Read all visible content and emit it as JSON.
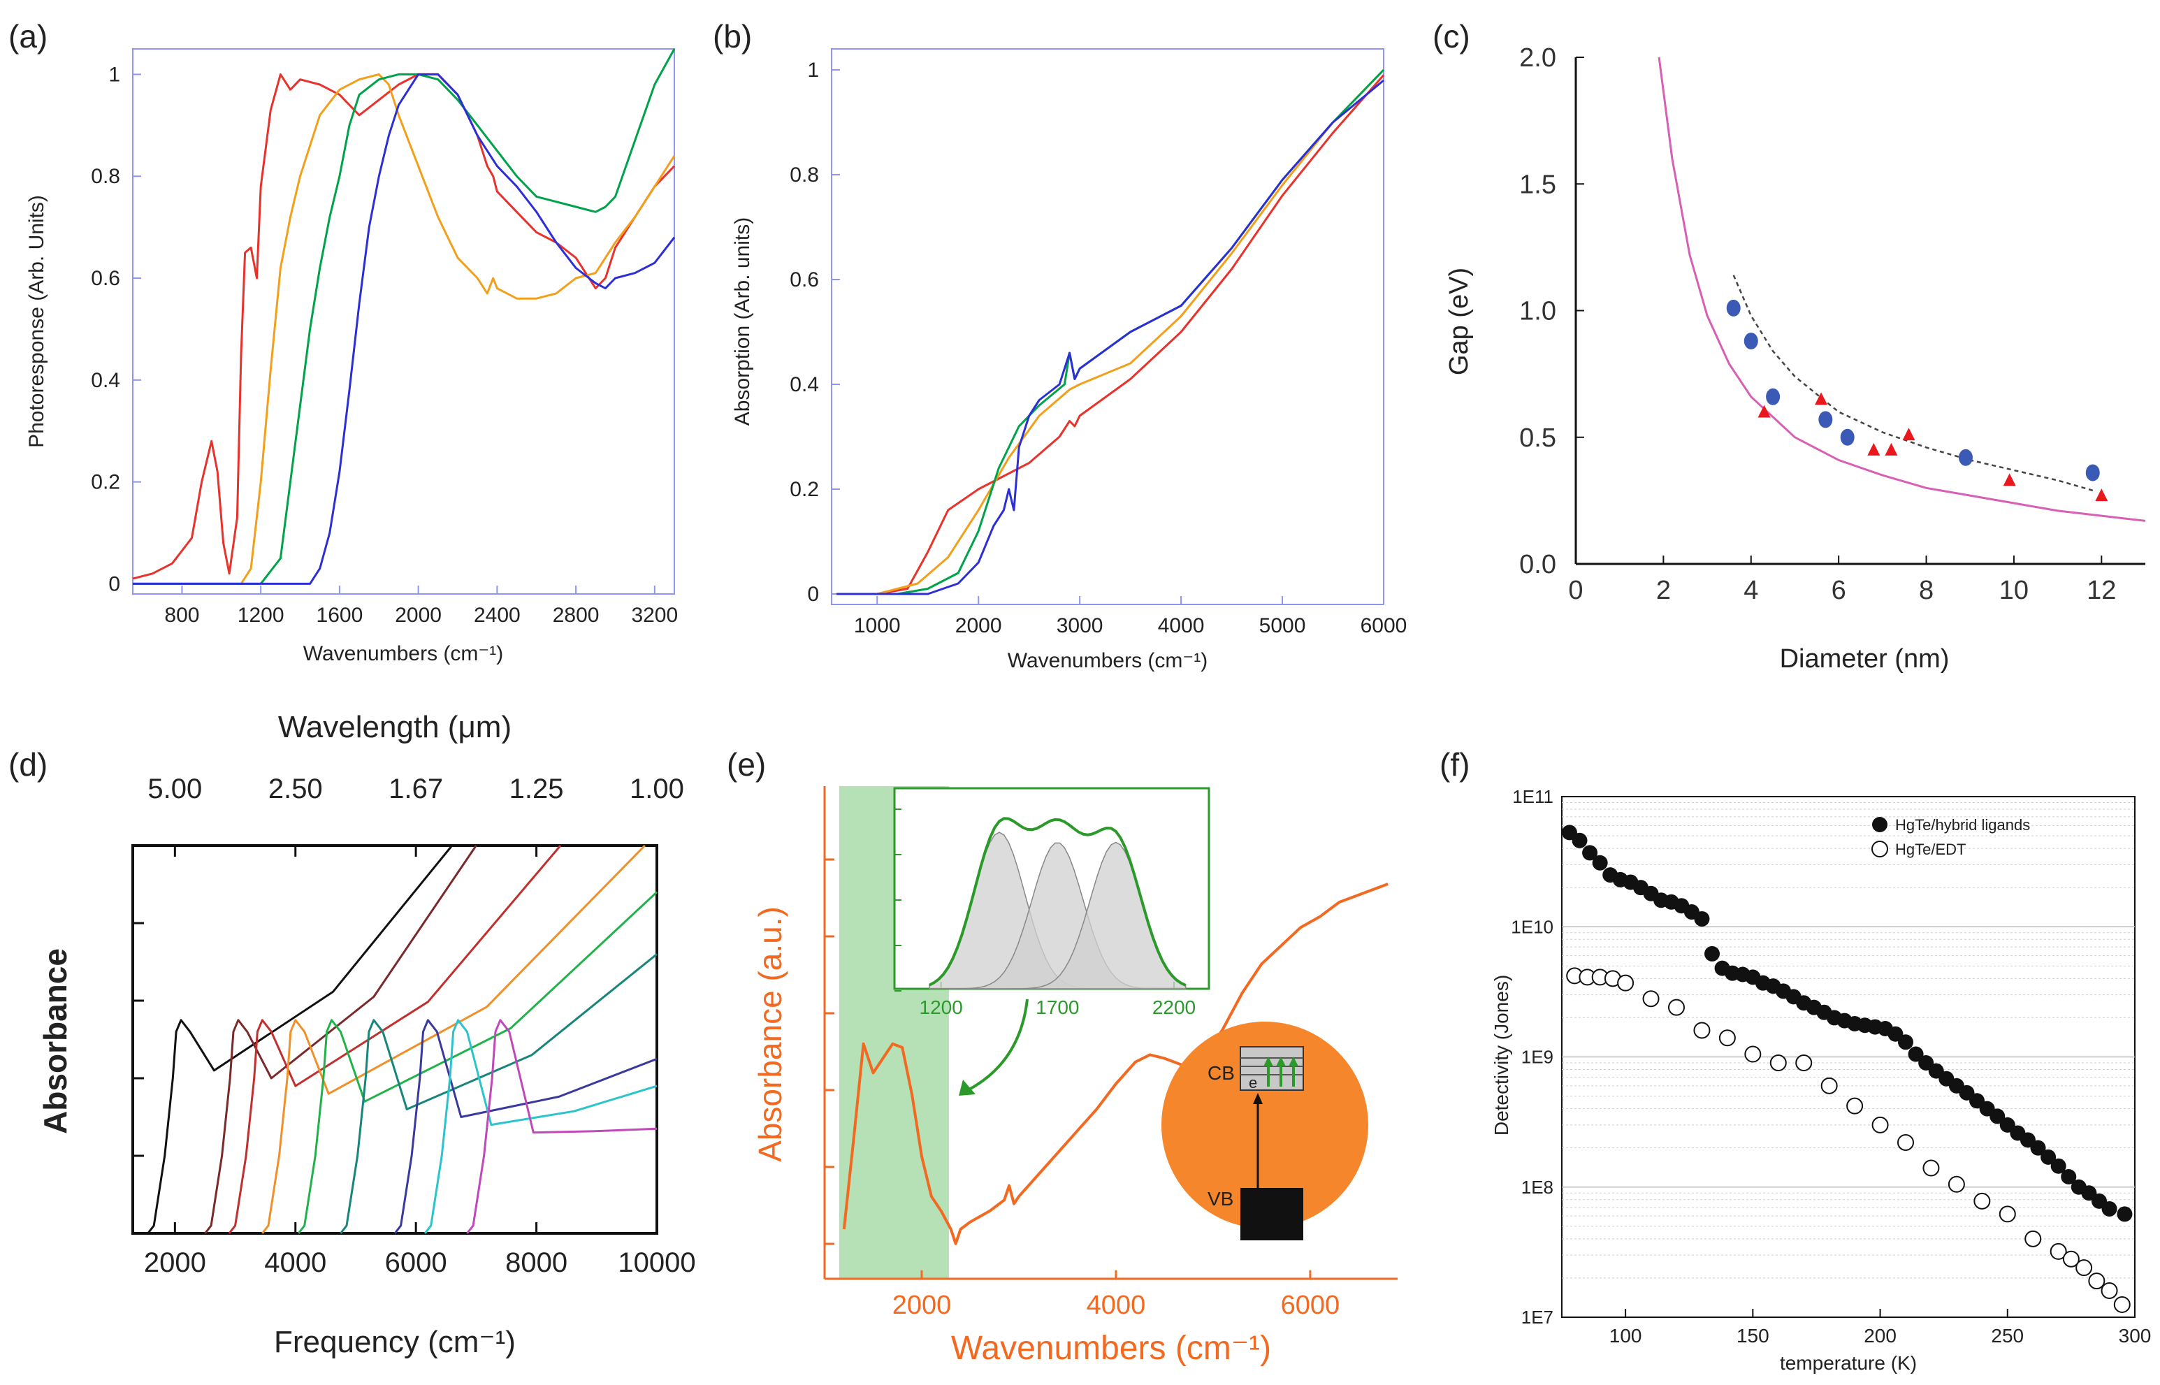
{
  "panels": {
    "a": {
      "tag": "(a)"
    },
    "b": {
      "tag": "(b)"
    },
    "c": {
      "tag": "(c)"
    },
    "d": {
      "tag": "(d)"
    },
    "e": {
      "tag": "(e)"
    },
    "f": {
      "tag": "(f)"
    }
  },
  "colors": {
    "red": "#e8322c",
    "orange": "#f2a01c",
    "green": "#00a24a",
    "blue": "#2d2fd6",
    "frame": "#8f95f0",
    "eorange": "#f26a21",
    "egreen": "#2b9a2b",
    "pink": "#d75fb5"
  },
  "chart_data": [
    {
      "id": "a",
      "type": "line",
      "xlabel": "Wavenumbers (cm⁻¹)",
      "ylabel": "Photoresponse (Arb. Units)",
      "xlim": [
        550,
        3300
      ],
      "ylim": [
        -0.02,
        1.05
      ],
      "xticks": [
        "800",
        "1200",
        "1600",
        "2000",
        "2400",
        "2800",
        "3200"
      ],
      "yticks": [
        "0",
        "0.2",
        "0.4",
        "0.6",
        "0.8",
        "1"
      ],
      "series": [
        {
          "name": "red",
          "color": "#e8322c",
          "x": [
            550,
            650,
            750,
            850,
            900,
            950,
            980,
            1010,
            1040,
            1080,
            1100,
            1120,
            1150,
            1180,
            1200,
            1250,
            1300,
            1350,
            1400,
            1500,
            1600,
            1700,
            1800,
            1900,
            2000,
            2100,
            2200,
            2300,
            2350,
            2380,
            2400,
            2500,
            2600,
            2700,
            2800,
            2900,
            2950,
            3000,
            3100,
            3200,
            3300
          ],
          "y": [
            0.01,
            0.02,
            0.04,
            0.09,
            0.2,
            0.28,
            0.22,
            0.08,
            0.02,
            0.13,
            0.45,
            0.65,
            0.66,
            0.6,
            0.78,
            0.93,
            1.0,
            0.97,
            0.99,
            0.98,
            0.96,
            0.92,
            0.95,
            0.98,
            1.0,
            1.0,
            0.96,
            0.88,
            0.82,
            0.8,
            0.77,
            0.73,
            0.69,
            0.67,
            0.64,
            0.58,
            0.6,
            0.66,
            0.72,
            0.78,
            0.82
          ]
        },
        {
          "name": "orange",
          "color": "#f2a01c",
          "x": [
            550,
            1100,
            1150,
            1200,
            1250,
            1300,
            1350,
            1400,
            1500,
            1600,
            1700,
            1800,
            1850,
            1900,
            2000,
            2100,
            2200,
            2300,
            2350,
            2380,
            2400,
            2500,
            2600,
            2700,
            2800,
            2900,
            3000,
            3100,
            3200,
            3300
          ],
          "y": [
            0.0,
            0.0,
            0.03,
            0.2,
            0.42,
            0.62,
            0.72,
            0.8,
            0.92,
            0.97,
            0.99,
            1.0,
            0.98,
            0.92,
            0.82,
            0.72,
            0.64,
            0.6,
            0.57,
            0.6,
            0.58,
            0.56,
            0.56,
            0.57,
            0.6,
            0.61,
            0.67,
            0.72,
            0.78,
            0.84
          ]
        },
        {
          "name": "green",
          "color": "#00a24a",
          "x": [
            550,
            1200,
            1300,
            1350,
            1400,
            1450,
            1500,
            1550,
            1600,
            1650,
            1700,
            1800,
            1900,
            2000,
            2100,
            2200,
            2300,
            2400,
            2500,
            2600,
            2700,
            2800,
            2900,
            2950,
            3000,
            3100,
            3200,
            3300
          ],
          "y": [
            0.0,
            0.0,
            0.05,
            0.2,
            0.35,
            0.5,
            0.62,
            0.72,
            0.8,
            0.9,
            0.96,
            0.99,
            1.0,
            1.0,
            0.99,
            0.95,
            0.9,
            0.85,
            0.8,
            0.76,
            0.75,
            0.74,
            0.73,
            0.74,
            0.76,
            0.87,
            0.98,
            1.05
          ]
        },
        {
          "name": "blue",
          "color": "#2d2fd6",
          "x": [
            550,
            1450,
            1500,
            1550,
            1600,
            1650,
            1700,
            1750,
            1800,
            1850,
            1900,
            2000,
            2100,
            2200,
            2300,
            2400,
            2500,
            2600,
            2700,
            2800,
            2900,
            2950,
            3000,
            3100,
            3200,
            3300
          ],
          "y": [
            0.0,
            0.0,
            0.03,
            0.1,
            0.22,
            0.38,
            0.55,
            0.7,
            0.8,
            0.88,
            0.94,
            1.0,
            1.0,
            0.96,
            0.88,
            0.82,
            0.78,
            0.73,
            0.67,
            0.62,
            0.59,
            0.58,
            0.6,
            0.61,
            0.63,
            0.68
          ]
        }
      ]
    },
    {
      "id": "b",
      "type": "line",
      "xlabel": "Wavenumbers (cm⁻¹)",
      "ylabel": "Absorption (Arb. units)",
      "xlim": [
        550,
        6000
      ],
      "ylim": [
        -0.02,
        1.04
      ],
      "xticks": [
        "1000",
        "2000",
        "3000",
        "4000",
        "5000",
        "6000"
      ],
      "yticks": [
        "0",
        "0.2",
        "0.4",
        "0.6",
        "0.8",
        "1"
      ],
      "series": [
        {
          "name": "red",
          "color": "#e8322c",
          "x": [
            600,
            1000,
            1300,
            1500,
            1700,
            2000,
            2500,
            2800,
            2900,
            2950,
            3000,
            3500,
            4000,
            4500,
            5000,
            5500,
            6000
          ],
          "y": [
            0.0,
            0.0,
            0.01,
            0.08,
            0.16,
            0.2,
            0.25,
            0.3,
            0.33,
            0.32,
            0.34,
            0.41,
            0.5,
            0.62,
            0.76,
            0.88,
            0.99
          ]
        },
        {
          "name": "orange",
          "color": "#f2a01c",
          "x": [
            600,
            1000,
            1400,
            1700,
            2000,
            2300,
            2600,
            2900,
            3000,
            3500,
            4000,
            4500,
            5000,
            5500,
            6000
          ],
          "y": [
            0.0,
            0.0,
            0.02,
            0.07,
            0.16,
            0.26,
            0.34,
            0.39,
            0.4,
            0.44,
            0.53,
            0.65,
            0.78,
            0.9,
            1.0
          ]
        },
        {
          "name": "green",
          "color": "#00a24a",
          "x": [
            600,
            1200,
            1500,
            1800,
            2000,
            2200,
            2400,
            2600,
            2850,
            2900,
            2950,
            3000,
            3500,
            4000,
            4500,
            5000,
            5500,
            6000
          ],
          "y": [
            0.0,
            0.0,
            0.01,
            0.04,
            0.12,
            0.24,
            0.32,
            0.36,
            0.4,
            0.46,
            0.41,
            0.43,
            0.5,
            0.55,
            0.66,
            0.79,
            0.9,
            1.0
          ]
        },
        {
          "name": "blue",
          "color": "#2d2fd6",
          "x": [
            600,
            1500,
            1800,
            2000,
            2150,
            2250,
            2300,
            2350,
            2400,
            2500,
            2600,
            2800,
            2900,
            2950,
            3000,
            3500,
            4000,
            4500,
            5000,
            5500,
            6000
          ],
          "y": [
            0.0,
            0.0,
            0.02,
            0.06,
            0.13,
            0.16,
            0.2,
            0.16,
            0.28,
            0.34,
            0.37,
            0.4,
            0.46,
            0.41,
            0.43,
            0.5,
            0.55,
            0.66,
            0.79,
            0.9,
            0.98
          ]
        }
      ]
    },
    {
      "id": "c",
      "type": "scatter",
      "xlabel": "Diameter (nm)",
      "ylabel": "Gap (eV)",
      "xlim": [
        0,
        13
      ],
      "ylim": [
        0,
        2.0
      ],
      "xticks": [
        "0",
        "2",
        "4",
        "6",
        "8",
        "10",
        "12"
      ],
      "yticks": [
        "0.0",
        "0.5",
        "1.0",
        "1.5",
        "2.0"
      ],
      "circles": {
        "x": [
          3.6,
          4.0,
          4.5,
          5.7,
          6.2,
          8.9,
          11.8
        ],
        "y": [
          1.01,
          0.88,
          0.66,
          0.57,
          0.5,
          0.42,
          0.36
        ]
      },
      "triangles": {
        "x": [
          4.3,
          5.6,
          6.8,
          7.2,
          7.6,
          9.9,
          12.0
        ],
        "y": [
          0.6,
          0.65,
          0.45,
          0.45,
          0.51,
          0.33,
          0.27
        ]
      },
      "fit_solid": {
        "x": [
          1.9,
          2.2,
          2.6,
          3.0,
          3.5,
          4.0,
          5.0,
          6.0,
          7.0,
          8.0,
          9.0,
          10.0,
          11.0,
          12.0,
          13.0
        ],
        "y": [
          2.0,
          1.6,
          1.22,
          0.98,
          0.79,
          0.66,
          0.5,
          0.41,
          0.35,
          0.3,
          0.27,
          0.24,
          0.21,
          0.19,
          0.17
        ]
      },
      "fit_dashed": {
        "x": [
          3.6,
          4.0,
          4.5,
          5.0,
          6.0,
          7.0,
          8.0,
          9.0,
          10.0,
          11.0,
          11.8
        ],
        "y": [
          1.14,
          0.98,
          0.84,
          0.74,
          0.6,
          0.52,
          0.46,
          0.41,
          0.37,
          0.33,
          0.29
        ]
      }
    },
    {
      "id": "d",
      "type": "line",
      "xlabel": "Frequency (cm⁻¹)",
      "ylabel": "Absorbance",
      "top_xlabel": "Wavelength (μm)",
      "top_ticks": [
        "5.00",
        "2.50",
        "1.67",
        "1.25",
        "1.00"
      ],
      "top_tick_freqs": [
        2000,
        4000,
        6000,
        8000,
        10000
      ],
      "xlim": [
        1300,
        10000
      ],
      "ylim": [
        0,
        1.0
      ],
      "xticks": [
        "2000",
        "4000",
        "6000",
        "8000",
        "10000"
      ],
      "peaks": [
        {
          "f": 2100,
          "color": "#111111",
          "end": [
            6600,
            1.0
          ]
        },
        {
          "f": 3050,
          "color": "#7a2a2a",
          "end": [
            7000,
            1.0
          ]
        },
        {
          "f": 3450,
          "color": "#c0302f",
          "end": [
            8400,
            1.0
          ]
        },
        {
          "f": 4000,
          "color": "#f0902a",
          "end": [
            9800,
            1.0
          ]
        },
        {
          "f": 4600,
          "color": "#22b24c",
          "end": [
            10000,
            0.88
          ]
        },
        {
          "f": 5300,
          "color": "#17857a",
          "end": [
            10000,
            0.72
          ]
        },
        {
          "f": 6200,
          "color": "#3a3a9e",
          "end": [
            10000,
            0.45
          ]
        },
        {
          "f": 6700,
          "color": "#2cc4cc",
          "end": [
            10000,
            0.38
          ]
        },
        {
          "f": 7400,
          "color": "#c048b8",
          "end": [
            10000,
            0.27
          ]
        }
      ]
    },
    {
      "id": "e",
      "type": "line",
      "xlabel": "Wavenumbers (cm⁻¹)",
      "ylabel": "Absorbance (a.u.)",
      "xlim": [
        1000,
        6900
      ],
      "ylim": [
        0,
        1.0
      ],
      "xticks": [
        "2000",
        "4000",
        "6000"
      ],
      "x": [
        1200,
        1300,
        1400,
        1500,
        1600,
        1700,
        1800,
        1900,
        2000,
        2100,
        2200,
        2300,
        2350,
        2400,
        2500,
        2700,
        2850,
        2900,
        2950,
        3000,
        3200,
        3400,
        3600,
        3800,
        4000,
        4200,
        4350,
        4500,
        4700,
        4900,
        5100,
        5300,
        5500,
        5700,
        5900,
        6100,
        6300,
        6500,
        6700,
        6800
      ],
      "y": [
        0.05,
        0.3,
        0.56,
        0.48,
        0.52,
        0.56,
        0.55,
        0.42,
        0.25,
        0.14,
        0.1,
        0.05,
        0.01,
        0.05,
        0.07,
        0.1,
        0.13,
        0.17,
        0.12,
        0.14,
        0.2,
        0.26,
        0.32,
        0.38,
        0.45,
        0.51,
        0.53,
        0.52,
        0.5,
        0.52,
        0.6,
        0.7,
        0.78,
        0.83,
        0.88,
        0.91,
        0.95,
        0.97,
        0.99,
        1.0
      ],
      "highlight_range": [
        1150,
        2280
      ],
      "inset": {
        "xticks": [
          "1200",
          "1700",
          "2200"
        ],
        "xlim": [
          1000,
          2350
        ],
        "peak_centers": [
          1450,
          1700,
          1950
        ],
        "peak_heights": [
          0.78,
          0.73,
          0.73
        ],
        "peak_width": 110
      },
      "diagram": {
        "cb": "CB",
        "vb": "VB",
        "e": "e"
      }
    },
    {
      "id": "f",
      "type": "scatter",
      "xlabel": "temperature (K)",
      "ylabel": "Detectivity (Jones)",
      "xlim": [
        75,
        300
      ],
      "ylog": true,
      "ylim": [
        10000000.0,
        100000000000.0
      ],
      "xticks": [
        "100",
        "150",
        "200",
        "250",
        "300"
      ],
      "yticks": [
        "1E7",
        "1E8",
        "1E9",
        "1E10",
        "1E11"
      ],
      "legend": [
        "HgTe/hybrid ligands",
        "HgTe/EDT"
      ],
      "filled": {
        "x": [
          78,
          82,
          86,
          90,
          94,
          98,
          102,
          106,
          110,
          114,
          118,
          122,
          126,
          130,
          134,
          138,
          142,
          146,
          150,
          154,
          158,
          162,
          166,
          170,
          174,
          178,
          182,
          186,
          190,
          194,
          198,
          202,
          206,
          210,
          214,
          218,
          222,
          226,
          230,
          234,
          238,
          242,
          246,
          250,
          254,
          258,
          262,
          266,
          270,
          274,
          278,
          282,
          286,
          290,
          296
        ],
        "y": [
          53000000000.0,
          46000000000.0,
          37000000000.0,
          31000000000.0,
          25000000000.0,
          23000000000.0,
          22000000000.0,
          20000000000.0,
          18000000000.0,
          16000000000.0,
          15500000000.0,
          14500000000.0,
          13000000000.0,
          11500000000.0,
          6200000000.0,
          4800000000.0,
          4400000000.0,
          4300000000.0,
          4100000000.0,
          3700000000.0,
          3500000000.0,
          3200000000.0,
          2900000000.0,
          2600000000.0,
          2400000000.0,
          2200000000.0,
          2000000000.0,
          1900000000.0,
          1800000000.0,
          1750000000.0,
          1700000000.0,
          1650000000.0,
          1500000000.0,
          1300000000.0,
          1050000000.0,
          900000000.0,
          780000000.0,
          680000000.0,
          600000000.0,
          530000000.0,
          460000000.0,
          400000000.0,
          350000000.0,
          300000000.0,
          260000000.0,
          230000000.0,
          200000000.0,
          170000000.0,
          145000000.0,
          120000000.0,
          100000000.0,
          90000000.0,
          78000000.0,
          68000000.0,
          62000000.0
        ]
      },
      "open": {
        "x": [
          80,
          85,
          90,
          95,
          100,
          110,
          120,
          130,
          140,
          150,
          160,
          170,
          180,
          190,
          200,
          210,
          220,
          230,
          240,
          250,
          260,
          270,
          275,
          280,
          285,
          290,
          295
        ],
        "y": [
          4200000000.0,
          4100000000.0,
          4100000000.0,
          4000000000.0,
          3700000000.0,
          2800000000.0,
          2400000000.0,
          1600000000.0,
          1400000000.0,
          1050000000.0,
          900000000.0,
          900000000.0,
          600000000.0,
          420000000.0,
          300000000.0,
          220000000.0,
          140000000.0,
          105000000.0,
          78000000.0,
          62000000.0,
          40000000.0,
          32000000.0,
          28000000.0,
          24000000.0,
          19000000.0,
          16000000.0,
          12500000.0
        ]
      }
    }
  ]
}
